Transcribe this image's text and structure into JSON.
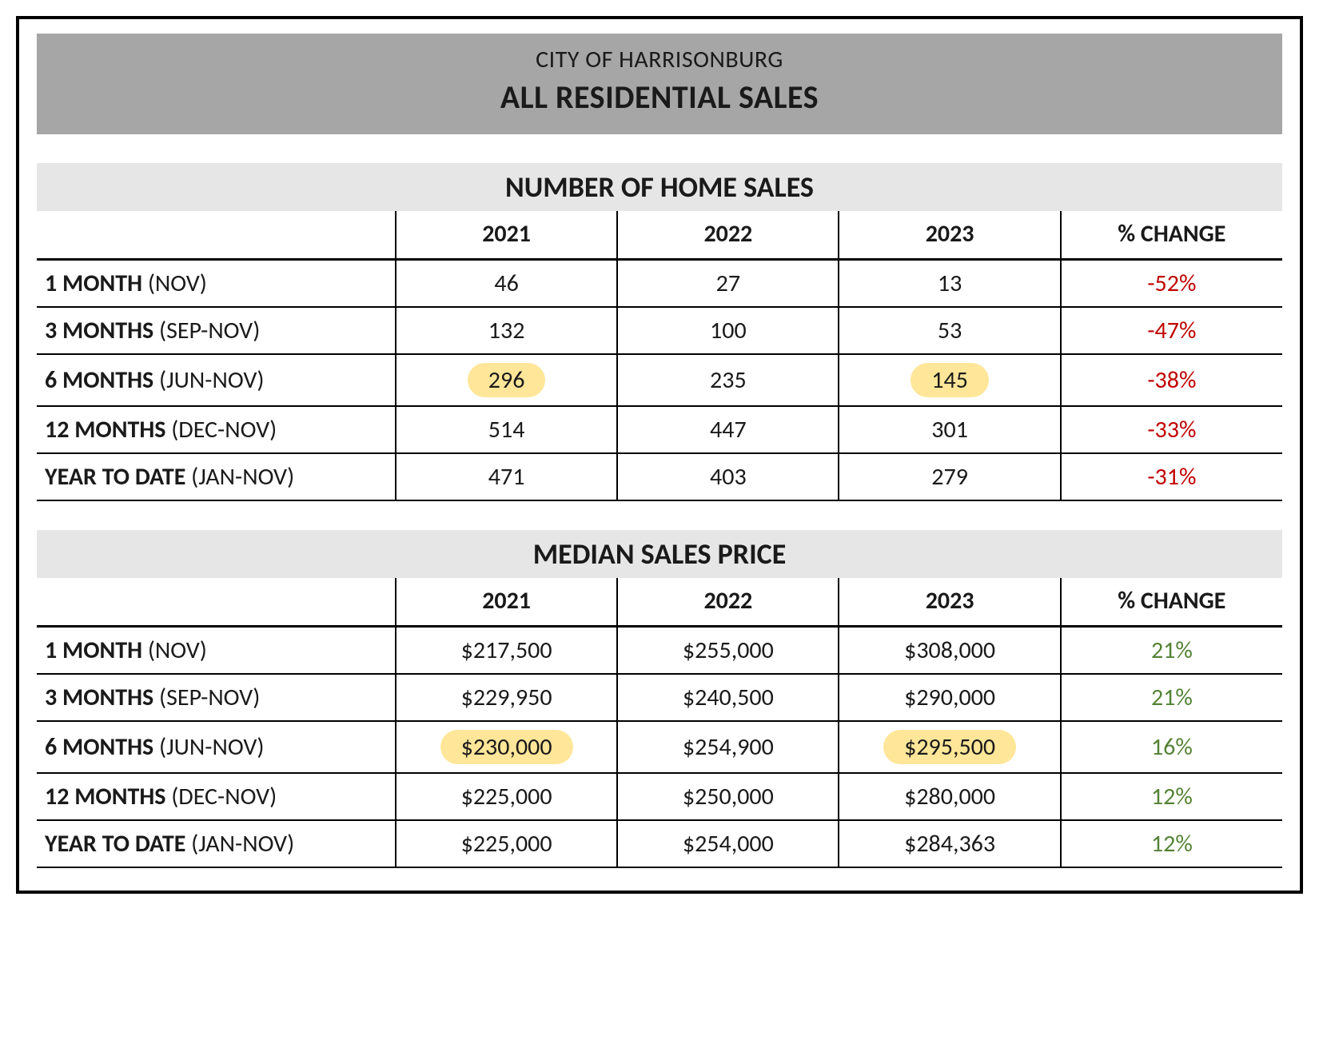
{
  "colors": {
    "title_bg": "#a6a6a6",
    "section_bg": "#e6e6e6",
    "border": "#000000",
    "text": "#1a1a1a",
    "negative": "#c00000",
    "positive": "#548235",
    "highlight_bg": "#ffe699"
  },
  "title": {
    "line1": "CITY OF HARRISONBURG",
    "line2": "ALL RESIDENTIAL SALES"
  },
  "tables": [
    {
      "heading": "NUMBER OF HOME SALES",
      "columns": [
        "",
        "2021",
        "2022",
        "2023",
        "% CHANGE"
      ],
      "rows": [
        {
          "label_bold": "1 MONTH",
          "label_rest": " (NOV)",
          "y1": "46",
          "y2": "27",
          "y3": "13",
          "chg": "-52%",
          "chg_sign": "neg",
          "hl_y1": false,
          "hl_y3": false
        },
        {
          "label_bold": "3 MONTHS",
          "label_rest": " (SEP-NOV)",
          "y1": "132",
          "y2": "100",
          "y3": "53",
          "chg": "-47%",
          "chg_sign": "neg",
          "hl_y1": false,
          "hl_y3": false
        },
        {
          "label_bold": "6 MONTHS",
          "label_rest": " (JUN-NOV)",
          "y1": "296",
          "y2": "235",
          "y3": "145",
          "chg": "-38%",
          "chg_sign": "neg",
          "hl_y1": true,
          "hl_y3": true
        },
        {
          "label_bold": "12 MONTHS",
          "label_rest": " (DEC-NOV)",
          "y1": "514",
          "y2": "447",
          "y3": "301",
          "chg": "-33%",
          "chg_sign": "neg",
          "hl_y1": false,
          "hl_y3": false
        },
        {
          "label_bold": "YEAR TO DATE",
          "label_rest": " (JAN-NOV)",
          "y1": "471",
          "y2": "403",
          "y3": "279",
          "chg": "-31%",
          "chg_sign": "neg",
          "hl_y1": false,
          "hl_y3": false
        }
      ]
    },
    {
      "heading": "MEDIAN SALES PRICE",
      "columns": [
        "",
        "2021",
        "2022",
        "2023",
        "% CHANGE"
      ],
      "rows": [
        {
          "label_bold": "1 MONTH",
          "label_rest": " (NOV)",
          "y1": "$217,500",
          "y2": "$255,000",
          "y3": "$308,000",
          "chg": "21%",
          "chg_sign": "pos",
          "hl_y1": false,
          "hl_y3": false
        },
        {
          "label_bold": "3 MONTHS",
          "label_rest": " (SEP-NOV)",
          "y1": "$229,950",
          "y2": "$240,500",
          "y3": "$290,000",
          "chg": "21%",
          "chg_sign": "pos",
          "hl_y1": false,
          "hl_y3": false
        },
        {
          "label_bold": "6 MONTHS",
          "label_rest": " (JUN-NOV)",
          "y1": "$230,000",
          "y2": "$254,900",
          "y3": "$295,500",
          "chg": "16%",
          "chg_sign": "pos",
          "hl_y1": true,
          "hl_y3": true
        },
        {
          "label_bold": "12 MONTHS",
          "label_rest": " (DEC-NOV)",
          "y1": "$225,000",
          "y2": "$250,000",
          "y3": "$280,000",
          "chg": "12%",
          "chg_sign": "pos",
          "hl_y1": false,
          "hl_y3": false
        },
        {
          "label_bold": "YEAR TO DATE",
          "label_rest": " (JAN-NOV)",
          "y1": "$225,000",
          "y2": "$254,000",
          "y3": "$284,363",
          "chg": "12%",
          "chg_sign": "pos",
          "hl_y1": false,
          "hl_y3": false
        }
      ]
    }
  ]
}
